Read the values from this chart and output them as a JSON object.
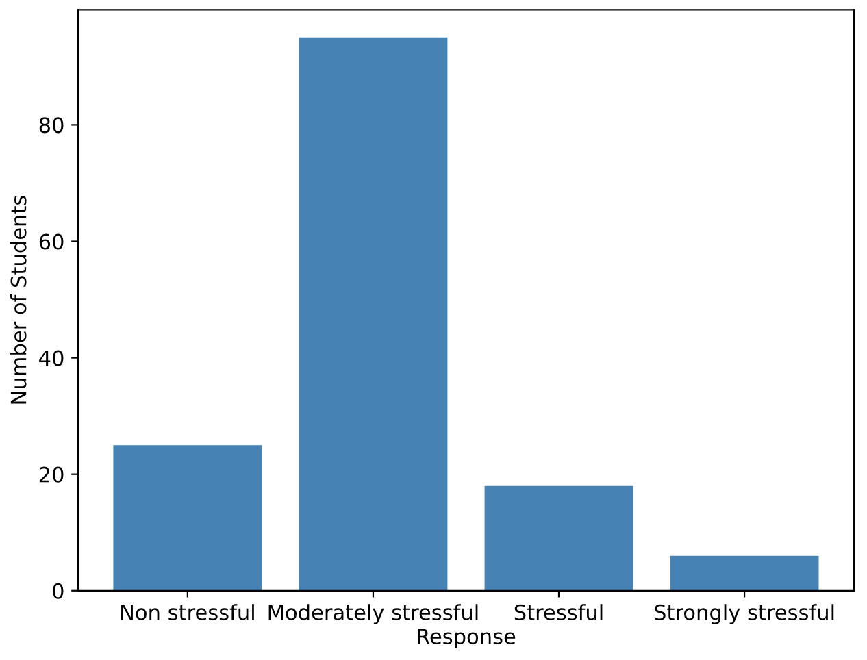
{
  "chart_data": {
    "type": "bar",
    "xlabel": "Response",
    "ylabel": "Number of Students",
    "categories": [
      "Non stressful",
      "Moderately stressful",
      "Stressful",
      "Strongly stressful"
    ],
    "values": [
      25,
      95,
      18,
      6
    ],
    "color": "#4682b4",
    "ylim": [
      0,
      99.75
    ],
    "yticks": [
      0,
      20,
      40,
      60,
      80
    ],
    "grid": false
  }
}
